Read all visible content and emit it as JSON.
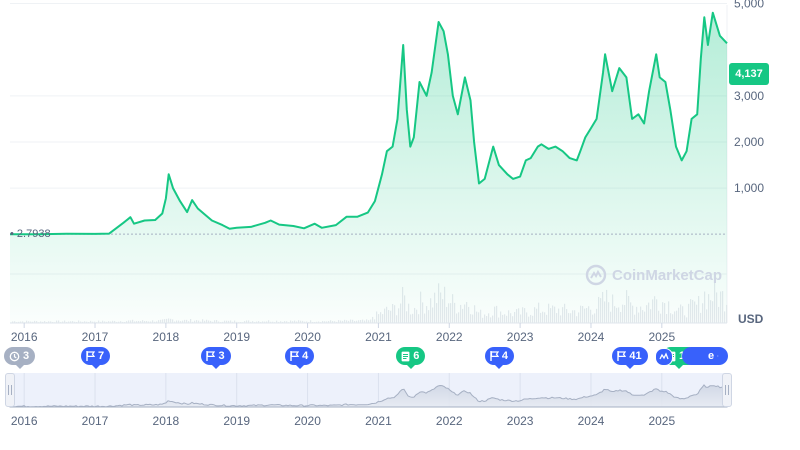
{
  "chart_data": {
    "type": "area",
    "currency_label": "USD",
    "current_value_label": "4,137",
    "start_value_label": "2.7938",
    "ylim": [
      0,
      5000
    ],
    "y_ticks": [
      {
        "value": 1000,
        "label": "1,000"
      },
      {
        "value": 2000,
        "label": "2,000"
      },
      {
        "value": 3000,
        "label": "3,000"
      },
      {
        "value": 5000,
        "label": "5,000"
      }
    ],
    "x_ticks": [
      "2016",
      "2017",
      "2018",
      "2019",
      "2020",
      "2021",
      "2022",
      "2023",
      "2024",
      "2025"
    ],
    "x_start": 2015.8,
    "x_end": 2025.92,
    "series": [
      {
        "points": [
          [
            2015.8,
            2.8
          ],
          [
            2016.2,
            3
          ],
          [
            2016.6,
            10
          ],
          [
            2017.0,
            8
          ],
          [
            2017.2,
            15
          ],
          [
            2017.4,
            250
          ],
          [
            2017.5,
            370
          ],
          [
            2017.55,
            230
          ],
          [
            2017.7,
            300
          ],
          [
            2017.85,
            310
          ],
          [
            2017.95,
            450
          ],
          [
            2018.0,
            780
          ],
          [
            2018.04,
            1300
          ],
          [
            2018.1,
            1000
          ],
          [
            2018.2,
            720
          ],
          [
            2018.3,
            480
          ],
          [
            2018.37,
            740
          ],
          [
            2018.45,
            560
          ],
          [
            2018.55,
            430
          ],
          [
            2018.65,
            300
          ],
          [
            2018.8,
            200
          ],
          [
            2018.9,
            120
          ],
          [
            2019.0,
            140
          ],
          [
            2019.2,
            160
          ],
          [
            2019.4,
            250
          ],
          [
            2019.48,
            300
          ],
          [
            2019.6,
            210
          ],
          [
            2019.8,
            180
          ],
          [
            2019.95,
            130
          ],
          [
            2020.1,
            230
          ],
          [
            2020.2,
            140
          ],
          [
            2020.4,
            200
          ],
          [
            2020.55,
            380
          ],
          [
            2020.7,
            380
          ],
          [
            2020.85,
            470
          ],
          [
            2020.95,
            720
          ],
          [
            2021.05,
            1300
          ],
          [
            2021.12,
            1800
          ],
          [
            2021.2,
            1900
          ],
          [
            2021.27,
            2500
          ],
          [
            2021.35,
            4100
          ],
          [
            2021.4,
            2700
          ],
          [
            2021.45,
            1900
          ],
          [
            2021.5,
            2100
          ],
          [
            2021.58,
            3300
          ],
          [
            2021.68,
            3000
          ],
          [
            2021.75,
            3500
          ],
          [
            2021.85,
            4600
          ],
          [
            2021.92,
            4400
          ],
          [
            2021.98,
            3900
          ],
          [
            2022.05,
            3000
          ],
          [
            2022.12,
            2600
          ],
          [
            2022.22,
            3400
          ],
          [
            2022.3,
            2900
          ],
          [
            2022.35,
            2000
          ],
          [
            2022.42,
            1100
          ],
          [
            2022.5,
            1200
          ],
          [
            2022.62,
            1900
          ],
          [
            2022.7,
            1500
          ],
          [
            2022.82,
            1300
          ],
          [
            2022.9,
            1200
          ],
          [
            2023.0,
            1250
          ],
          [
            2023.08,
            1600
          ],
          [
            2023.15,
            1650
          ],
          [
            2023.25,
            1900
          ],
          [
            2023.3,
            1950
          ],
          [
            2023.4,
            1850
          ],
          [
            2023.5,
            1900
          ],
          [
            2023.6,
            1800
          ],
          [
            2023.7,
            1650
          ],
          [
            2023.8,
            1600
          ],
          [
            2023.85,
            1800
          ],
          [
            2023.92,
            2100
          ],
          [
            2024.0,
            2300
          ],
          [
            2024.08,
            2500
          ],
          [
            2024.17,
            3500
          ],
          [
            2024.2,
            3900
          ],
          [
            2024.3,
            3100
          ],
          [
            2024.4,
            3600
          ],
          [
            2024.5,
            3400
          ],
          [
            2024.58,
            2500
          ],
          [
            2024.67,
            2600
          ],
          [
            2024.75,
            2400
          ],
          [
            2024.82,
            3100
          ],
          [
            2024.92,
            3900
          ],
          [
            2024.97,
            3400
          ],
          [
            2025.05,
            3300
          ],
          [
            2025.12,
            2700
          ],
          [
            2025.2,
            1900
          ],
          [
            2025.28,
            1600
          ],
          [
            2025.35,
            1800
          ],
          [
            2025.42,
            2500
          ],
          [
            2025.5,
            2600
          ],
          [
            2025.55,
            3800
          ],
          [
            2025.6,
            4700
          ],
          [
            2025.65,
            4100
          ],
          [
            2025.72,
            4800
          ],
          [
            2025.82,
            4300
          ],
          [
            2025.92,
            4137
          ]
        ]
      }
    ]
  },
  "event_badges": [
    {
      "count": "3",
      "kind": "history",
      "color": "gray",
      "year_pos": 2015.8
    },
    {
      "count": "7",
      "kind": "flag",
      "color": "blue",
      "year_pos": 2017.0
    },
    {
      "count": "3",
      "kind": "flag",
      "color": "blue",
      "year_pos": 2018.7
    },
    {
      "count": "4",
      "kind": "flag",
      "color": "blue",
      "year_pos": 2019.88
    },
    {
      "count": "6",
      "kind": "doc",
      "color": "green",
      "year_pos": 2021.45
    },
    {
      "count": "4",
      "kind": "flag",
      "color": "blue",
      "year_pos": 2022.7
    },
    {
      "count": "41",
      "kind": "flag",
      "color": "blue",
      "year_pos": 2024.5
    },
    {
      "count": "11",
      "kind": "doc",
      "color": "green",
      "year_pos": 2025.2
    }
  ],
  "more_badge": {
    "label": "e"
  },
  "watermark": "CoinMarketCap",
  "navigator": {
    "x_ticks": [
      "2016",
      "2017",
      "2018",
      "2019",
      "2020",
      "2021",
      "2022",
      "2023",
      "2024",
      "2025"
    ]
  },
  "colors": {
    "line": "#16c784",
    "accent": "#3861fb",
    "axis_text": "#58667e",
    "grid": "#eff2f5"
  }
}
